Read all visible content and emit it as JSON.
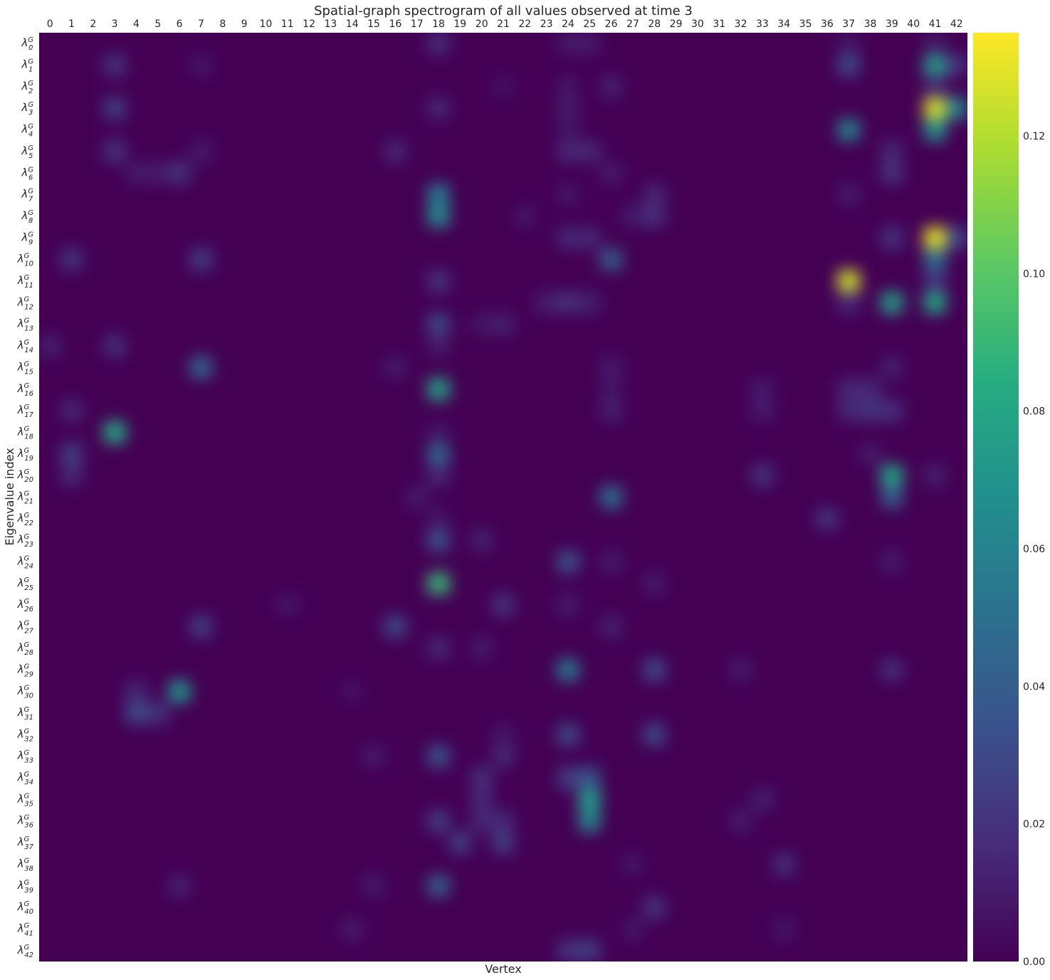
{
  "chart_data": {
    "type": "heatmap",
    "title": "Spatial-graph spectrogram of all values observed at time 3",
    "xlabel": "Vertex",
    "ylabel": "Eigenvalue index",
    "x_ticks": [
      "0",
      "1",
      "2",
      "3",
      "4",
      "5",
      "6",
      "7",
      "8",
      "9",
      "10",
      "11",
      "12",
      "13",
      "14",
      "15",
      "16",
      "17",
      "18",
      "19",
      "20",
      "21",
      "22",
      "23",
      "24",
      "25",
      "26",
      "27",
      "28",
      "29",
      "30",
      "31",
      "32",
      "33",
      "34",
      "35",
      "36",
      "37",
      "38",
      "39",
      "40",
      "41",
      "42"
    ],
    "y_ticks": [
      {
        "base": "λ",
        "sup": "G",
        "sub": "0"
      },
      {
        "base": "λ",
        "sup": "G",
        "sub": "1"
      },
      {
        "base": "λ",
        "sup": "G",
        "sub": "2"
      },
      {
        "base": "λ",
        "sup": "G",
        "sub": "3"
      },
      {
        "base": "λ",
        "sup": "G",
        "sub": "4"
      },
      {
        "base": "λ",
        "sup": "G",
        "sub": "5"
      },
      {
        "base": "λ",
        "sup": "G",
        "sub": "6"
      },
      {
        "base": "λ",
        "sup": "G",
        "sub": "7"
      },
      {
        "base": "λ",
        "sup": "G",
        "sub": "8"
      },
      {
        "base": "λ",
        "sup": "G",
        "sub": "9"
      },
      {
        "base": "λ",
        "sup": "G",
        "sub": "10"
      },
      {
        "base": "λ",
        "sup": "G",
        "sub": "11"
      },
      {
        "base": "λ",
        "sup": "G",
        "sub": "12"
      },
      {
        "base": "λ",
        "sup": "G",
        "sub": "13"
      },
      {
        "base": "λ",
        "sup": "G",
        "sub": "14"
      },
      {
        "base": "λ",
        "sup": "G",
        "sub": "15"
      },
      {
        "base": "λ",
        "sup": "G",
        "sub": "16"
      },
      {
        "base": "λ",
        "sup": "G",
        "sub": "17"
      },
      {
        "base": "λ",
        "sup": "G",
        "sub": "18"
      },
      {
        "base": "λ",
        "sup": "G",
        "sub": "19"
      },
      {
        "base": "λ",
        "sup": "G",
        "sub": "20"
      },
      {
        "base": "λ",
        "sup": "G",
        "sub": "21"
      },
      {
        "base": "λ",
        "sup": "G",
        "sub": "22"
      },
      {
        "base": "λ",
        "sup": "G",
        "sub": "23"
      },
      {
        "base": "λ",
        "sup": "G",
        "sub": "24"
      },
      {
        "base": "λ",
        "sup": "G",
        "sub": "25"
      },
      {
        "base": "λ",
        "sup": "G",
        "sub": "26"
      },
      {
        "base": "λ",
        "sup": "G",
        "sub": "27"
      },
      {
        "base": "λ",
        "sup": "G",
        "sub": "28"
      },
      {
        "base": "λ",
        "sup": "G",
        "sub": "29"
      },
      {
        "base": "λ",
        "sup": "G",
        "sub": "30"
      },
      {
        "base": "λ",
        "sup": "G",
        "sub": "31"
      },
      {
        "base": "λ",
        "sup": "G",
        "sub": "32"
      },
      {
        "base": "λ",
        "sup": "G",
        "sub": "33"
      },
      {
        "base": "λ",
        "sup": "G",
        "sub": "34"
      },
      {
        "base": "λ",
        "sup": "G",
        "sub": "35"
      },
      {
        "base": "λ",
        "sup": "G",
        "sub": "36"
      },
      {
        "base": "λ",
        "sup": "G",
        "sub": "37"
      },
      {
        "base": "λ",
        "sup": "G",
        "sub": "38"
      },
      {
        "base": "λ",
        "sup": "G",
        "sub": "39"
      },
      {
        "base": "λ",
        "sup": "G",
        "sub": "40"
      },
      {
        "base": "λ",
        "sup": "G",
        "sub": "41"
      },
      {
        "base": "λ",
        "sup": "G",
        "sub": "42"
      }
    ],
    "colormap": "viridis",
    "vmin": 0.0,
    "vmax": 0.135,
    "colorbar_ticks": [
      "0.00",
      "0.02",
      "0.04",
      "0.06",
      "0.08",
      "0.10",
      "0.12"
    ],
    "colorbar_tick_values": [
      0.0,
      0.02,
      0.04,
      0.06,
      0.08,
      0.1,
      0.12
    ],
    "x_axis_position": "top",
    "colorbar_position": "right",
    "grid": false,
    "background_value": 0.0,
    "cells": [
      {
        "row": 0,
        "col": 18,
        "value": 0.018
      },
      {
        "row": 0,
        "col": 24,
        "value": 0.01
      },
      {
        "row": 0,
        "col": 25,
        "value": 0.01
      },
      {
        "row": 0,
        "col": 37,
        "value": 0.008
      },
      {
        "row": 0,
        "col": 41,
        "value": 0.01
      },
      {
        "row": 1,
        "col": 3,
        "value": 0.02
      },
      {
        "row": 1,
        "col": 37,
        "value": 0.03
      },
      {
        "row": 1,
        "col": 41,
        "value": 0.075
      },
      {
        "row": 1,
        "col": 42,
        "value": 0.02
      },
      {
        "row": 1,
        "col": 7,
        "value": 0.008
      },
      {
        "row": 2,
        "col": 26,
        "value": 0.012
      },
      {
        "row": 2,
        "col": 24,
        "value": 0.008
      },
      {
        "row": 2,
        "col": 21,
        "value": 0.006
      },
      {
        "row": 2,
        "col": 41,
        "value": 0.015
      },
      {
        "row": 3,
        "col": 41,
        "value": 0.128
      },
      {
        "row": 3,
        "col": 42,
        "value": 0.06
      },
      {
        "row": 3,
        "col": 3,
        "value": 0.025
      },
      {
        "row": 3,
        "col": 18,
        "value": 0.015
      },
      {
        "row": 3,
        "col": 24,
        "value": 0.01
      },
      {
        "row": 4,
        "col": 37,
        "value": 0.06
      },
      {
        "row": 4,
        "col": 41,
        "value": 0.07
      },
      {
        "row": 4,
        "col": 24,
        "value": 0.008
      },
      {
        "row": 5,
        "col": 3,
        "value": 0.02
      },
      {
        "row": 5,
        "col": 16,
        "value": 0.015
      },
      {
        "row": 5,
        "col": 24,
        "value": 0.015
      },
      {
        "row": 5,
        "col": 25,
        "value": 0.015
      },
      {
        "row": 5,
        "col": 39,
        "value": 0.015
      },
      {
        "row": 5,
        "col": 7,
        "value": 0.01
      },
      {
        "row": 6,
        "col": 6,
        "value": 0.02
      },
      {
        "row": 6,
        "col": 4,
        "value": 0.01
      },
      {
        "row": 6,
        "col": 5,
        "value": 0.01
      },
      {
        "row": 6,
        "col": 39,
        "value": 0.02
      },
      {
        "row": 6,
        "col": 26,
        "value": 0.01
      },
      {
        "row": 7,
        "col": 18,
        "value": 0.055
      },
      {
        "row": 7,
        "col": 28,
        "value": 0.015
      },
      {
        "row": 7,
        "col": 24,
        "value": 0.008
      },
      {
        "row": 7,
        "col": 37,
        "value": 0.01
      },
      {
        "row": 8,
        "col": 18,
        "value": 0.065
      },
      {
        "row": 8,
        "col": 28,
        "value": 0.018
      },
      {
        "row": 8,
        "col": 27,
        "value": 0.01
      },
      {
        "row": 8,
        "col": 22,
        "value": 0.008
      },
      {
        "row": 9,
        "col": 41,
        "value": 0.13
      },
      {
        "row": 9,
        "col": 42,
        "value": 0.03
      },
      {
        "row": 9,
        "col": 24,
        "value": 0.015
      },
      {
        "row": 9,
        "col": 25,
        "value": 0.015
      },
      {
        "row": 9,
        "col": 39,
        "value": 0.02
      },
      {
        "row": 10,
        "col": 26,
        "value": 0.04
      },
      {
        "row": 10,
        "col": 7,
        "value": 0.025
      },
      {
        "row": 10,
        "col": 1,
        "value": 0.02
      },
      {
        "row": 10,
        "col": 41,
        "value": 0.05
      },
      {
        "row": 11,
        "col": 37,
        "value": 0.125
      },
      {
        "row": 11,
        "col": 18,
        "value": 0.02
      },
      {
        "row": 11,
        "col": 41,
        "value": 0.02
      },
      {
        "row": 12,
        "col": 39,
        "value": 0.075
      },
      {
        "row": 12,
        "col": 41,
        "value": 0.08
      },
      {
        "row": 12,
        "col": 24,
        "value": 0.018
      },
      {
        "row": 12,
        "col": 23,
        "value": 0.012
      },
      {
        "row": 12,
        "col": 25,
        "value": 0.012
      },
      {
        "row": 12,
        "col": 37,
        "value": 0.015
      },
      {
        "row": 13,
        "col": 18,
        "value": 0.03
      },
      {
        "row": 13,
        "col": 21,
        "value": 0.012
      },
      {
        "row": 13,
        "col": 20,
        "value": 0.008
      },
      {
        "row": 14,
        "col": 3,
        "value": 0.018
      },
      {
        "row": 14,
        "col": 0,
        "value": 0.012
      },
      {
        "row": 14,
        "col": 18,
        "value": 0.01
      },
      {
        "row": 15,
        "col": 7,
        "value": 0.045
      },
      {
        "row": 15,
        "col": 16,
        "value": 0.01
      },
      {
        "row": 15,
        "col": 39,
        "value": 0.012
      },
      {
        "row": 15,
        "col": 26,
        "value": 0.01
      },
      {
        "row": 16,
        "col": 18,
        "value": 0.078
      },
      {
        "row": 16,
        "col": 37,
        "value": 0.015
      },
      {
        "row": 16,
        "col": 38,
        "value": 0.015
      },
      {
        "row": 16,
        "col": 33,
        "value": 0.01
      },
      {
        "row": 16,
        "col": 26,
        "value": 0.008
      },
      {
        "row": 17,
        "col": 1,
        "value": 0.015
      },
      {
        "row": 17,
        "col": 37,
        "value": 0.015
      },
      {
        "row": 17,
        "col": 38,
        "value": 0.02
      },
      {
        "row": 17,
        "col": 39,
        "value": 0.018
      },
      {
        "row": 17,
        "col": 26,
        "value": 0.012
      },
      {
        "row": 17,
        "col": 33,
        "value": 0.01
      },
      {
        "row": 18,
        "col": 3,
        "value": 0.082
      },
      {
        "row": 18,
        "col": 18,
        "value": 0.008
      },
      {
        "row": 19,
        "col": 18,
        "value": 0.045
      },
      {
        "row": 19,
        "col": 1,
        "value": 0.025
      },
      {
        "row": 19,
        "col": 38,
        "value": 0.01
      },
      {
        "row": 20,
        "col": 39,
        "value": 0.08
      },
      {
        "row": 20,
        "col": 33,
        "value": 0.02
      },
      {
        "row": 20,
        "col": 1,
        "value": 0.015
      },
      {
        "row": 20,
        "col": 18,
        "value": 0.015
      },
      {
        "row": 20,
        "col": 41,
        "value": 0.012
      },
      {
        "row": 21,
        "col": 26,
        "value": 0.05
      },
      {
        "row": 21,
        "col": 39,
        "value": 0.04
      },
      {
        "row": 21,
        "col": 17,
        "value": 0.01
      },
      {
        "row": 22,
        "col": 36,
        "value": 0.02
      },
      {
        "row": 22,
        "col": 18,
        "value": 0.008
      },
      {
        "row": 23,
        "col": 18,
        "value": 0.035
      },
      {
        "row": 23,
        "col": 20,
        "value": 0.012
      },
      {
        "row": 24,
        "col": 24,
        "value": 0.035
      },
      {
        "row": 24,
        "col": 26,
        "value": 0.01
      },
      {
        "row": 24,
        "col": 39,
        "value": 0.01
      },
      {
        "row": 25,
        "col": 18,
        "value": 0.09
      },
      {
        "row": 25,
        "col": 28,
        "value": 0.01
      },
      {
        "row": 26,
        "col": 21,
        "value": 0.02
      },
      {
        "row": 26,
        "col": 11,
        "value": 0.008
      },
      {
        "row": 26,
        "col": 24,
        "value": 0.01
      },
      {
        "row": 27,
        "col": 16,
        "value": 0.03
      },
      {
        "row": 27,
        "col": 7,
        "value": 0.025
      },
      {
        "row": 27,
        "col": 26,
        "value": 0.012
      },
      {
        "row": 28,
        "col": 18,
        "value": 0.015
      },
      {
        "row": 28,
        "col": 20,
        "value": 0.01
      },
      {
        "row": 29,
        "col": 24,
        "value": 0.055
      },
      {
        "row": 29,
        "col": 28,
        "value": 0.03
      },
      {
        "row": 29,
        "col": 39,
        "value": 0.018
      },
      {
        "row": 29,
        "col": 32,
        "value": 0.01
      },
      {
        "row": 30,
        "col": 6,
        "value": 0.07
      },
      {
        "row": 30,
        "col": 4,
        "value": 0.015
      },
      {
        "row": 30,
        "col": 14,
        "value": 0.006
      },
      {
        "row": 31,
        "col": 4,
        "value": 0.03
      },
      {
        "row": 31,
        "col": 5,
        "value": 0.02
      },
      {
        "row": 32,
        "col": 24,
        "value": 0.03
      },
      {
        "row": 32,
        "col": 28,
        "value": 0.03
      },
      {
        "row": 32,
        "col": 21,
        "value": 0.008
      },
      {
        "row": 33,
        "col": 18,
        "value": 0.035
      },
      {
        "row": 33,
        "col": 21,
        "value": 0.015
      },
      {
        "row": 33,
        "col": 15,
        "value": 0.01
      },
      {
        "row": 34,
        "col": 24,
        "value": 0.025
      },
      {
        "row": 34,
        "col": 25,
        "value": 0.035
      },
      {
        "row": 34,
        "col": 20,
        "value": 0.018
      },
      {
        "row": 35,
        "col": 25,
        "value": 0.075
      },
      {
        "row": 35,
        "col": 20,
        "value": 0.015
      },
      {
        "row": 35,
        "col": 33,
        "value": 0.012
      },
      {
        "row": 36,
        "col": 25,
        "value": 0.06
      },
      {
        "row": 36,
        "col": 18,
        "value": 0.025
      },
      {
        "row": 36,
        "col": 20,
        "value": 0.015
      },
      {
        "row": 36,
        "col": 21,
        "value": 0.015
      },
      {
        "row": 36,
        "col": 32,
        "value": 0.01
      },
      {
        "row": 37,
        "col": 19,
        "value": 0.025
      },
      {
        "row": 37,
        "col": 21,
        "value": 0.025
      },
      {
        "row": 38,
        "col": 34,
        "value": 0.018
      },
      {
        "row": 38,
        "col": 27,
        "value": 0.008
      },
      {
        "row": 39,
        "col": 18,
        "value": 0.04
      },
      {
        "row": 39,
        "col": 6,
        "value": 0.012
      },
      {
        "row": 39,
        "col": 15,
        "value": 0.01
      },
      {
        "row": 40,
        "col": 28,
        "value": 0.02
      },
      {
        "row": 41,
        "col": 14,
        "value": 0.01
      },
      {
        "row": 41,
        "col": 34,
        "value": 0.008
      },
      {
        "row": 41,
        "col": 27,
        "value": 0.008
      },
      {
        "row": 42,
        "col": 24,
        "value": 0.02
      },
      {
        "row": 42,
        "col": 25,
        "value": 0.025
      }
    ]
  }
}
